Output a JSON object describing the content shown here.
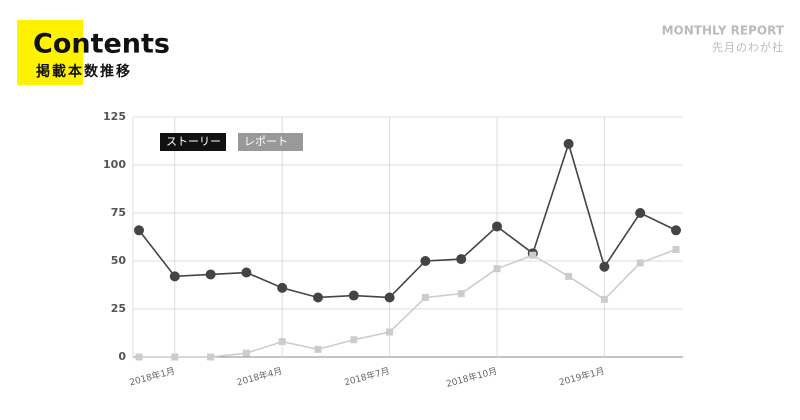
{
  "header": {
    "title": "Contents",
    "subtitle": "掲載本数推移",
    "report": "MONTHLY REPORT",
    "report_sub": "先月のわが社"
  },
  "chart_data": {
    "type": "line",
    "categories": [
      null,
      "2018年1月",
      null,
      null,
      "2018年4月",
      null,
      null,
      "2018年7月",
      null,
      null,
      "2018年10月",
      null,
      null,
      "2019年1月",
      null,
      null
    ],
    "series": [
      {
        "name": "ストーリー",
        "color": "#444444",
        "marker": "circle",
        "values": [
          66,
          42,
          43,
          44,
          36,
          31,
          32,
          31,
          50,
          51,
          68,
          54,
          111,
          47,
          75,
          66
        ]
      },
      {
        "name": "レポート",
        "color": "#cccccc",
        "marker": "square",
        "values": [
          0,
          0,
          0,
          2,
          8,
          4,
          9,
          13,
          31,
          33,
          46,
          53,
          42,
          30,
          49,
          56
        ]
      }
    ],
    "ylim": [
      0,
      125
    ],
    "yticks": [
      0,
      25,
      50,
      75,
      100,
      125
    ],
    "grid": true
  }
}
